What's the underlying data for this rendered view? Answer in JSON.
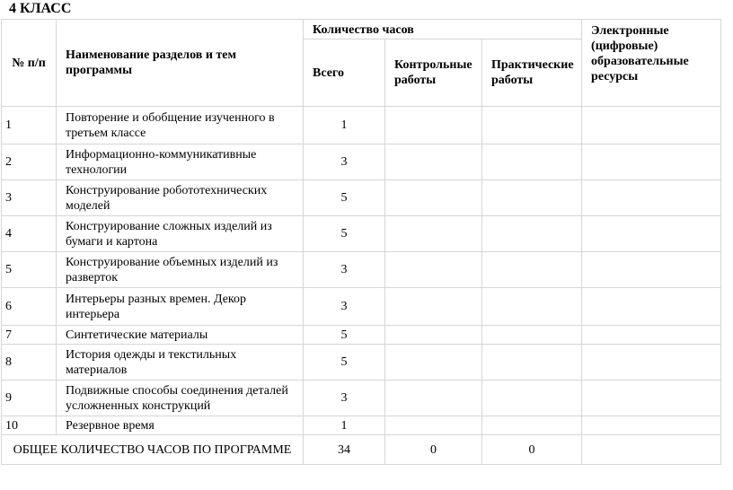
{
  "title": "4 КЛАСС",
  "header": {
    "num": "№ п/п",
    "name": "Наименование разделов и тем программы",
    "hours": "Количество часов",
    "total": "Всего",
    "control": "Контрольные работы",
    "practical": "Практические работы",
    "resources": "Электронные (цифровые) образовательные ресурсы"
  },
  "rows": [
    {
      "num": "1",
      "name": "Повторение и обобщение изученного в третьем классе",
      "total": "1",
      "control": "",
      "practical": "",
      "resources": ""
    },
    {
      "num": "2",
      "name": "Информационно-коммуникативные технологии",
      "total": "3",
      "control": "",
      "practical": "",
      "resources": ""
    },
    {
      "num": "3",
      "name": "Конструирование робототехнических моделей",
      "total": "5",
      "control": "",
      "practical": "",
      "resources": ""
    },
    {
      "num": "4",
      "name": "Конструирование сложных изделий из бумаги и картона",
      "total": "5",
      "control": "",
      "practical": "",
      "resources": ""
    },
    {
      "num": "5",
      "name": "Конструирование объемных изделий из разверток",
      "total": "3",
      "control": "",
      "practical": "",
      "resources": ""
    },
    {
      "num": "6",
      "name": "Интерьеры разных времен. Декор интерьера",
      "total": "3",
      "control": "",
      "practical": "",
      "resources": ""
    },
    {
      "num": "7",
      "name": "Синтетические материалы",
      "total": "5",
      "control": "",
      "practical": "",
      "resources": ""
    },
    {
      "num": "8",
      "name": "История одежды и текстильных материалов",
      "total": "5",
      "control": "",
      "practical": "",
      "resources": ""
    },
    {
      "num": "9",
      "name": "Подвижные способы соединения деталей усложненных конструкций",
      "total": "3",
      "control": "",
      "practical": "",
      "resources": ""
    },
    {
      "num": "10",
      "name": "Резервное время",
      "total": "1",
      "control": "",
      "practical": "",
      "resources": ""
    }
  ],
  "footer": {
    "label": "ОБЩЕЕ КОЛИЧЕСТВО ЧАСОВ ПО ПРОГРАММЕ",
    "total": "34",
    "control": "0",
    "practical": "0",
    "resources": ""
  }
}
